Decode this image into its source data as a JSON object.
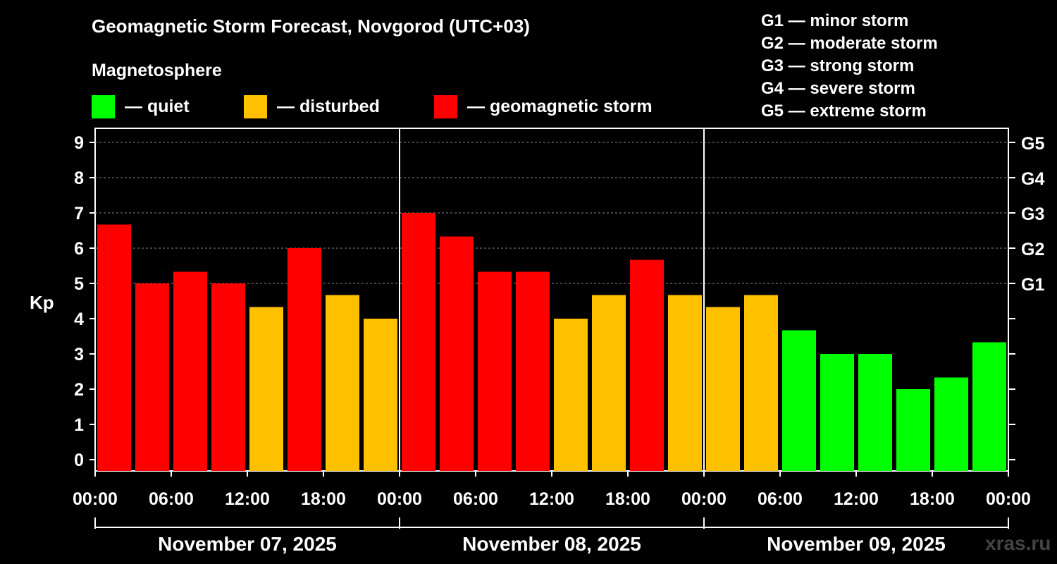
{
  "chart_data": {
    "type": "bar",
    "title": "Geomagnetic Storm Forecast, Novgorod (UTC+03)",
    "subtitle": "Magnetosphere",
    "ylabel": "Kp",
    "ylim": [
      0,
      9
    ],
    "yticks": [
      "0",
      "1",
      "2",
      "3",
      "4",
      "5",
      "6",
      "7",
      "8",
      "9"
    ],
    "right_ticks": [
      {
        "kp": 5,
        "label": "G1"
      },
      {
        "kp": 6,
        "label": "G2"
      },
      {
        "kp": 7,
        "label": "G3"
      },
      {
        "kp": 8,
        "label": "G4"
      },
      {
        "kp": 9,
        "label": "G5"
      }
    ],
    "x_tick_labels": [
      "00:00",
      "06:00",
      "12:00",
      "18:00",
      "00:00",
      "06:00",
      "12:00",
      "18:00",
      "00:00",
      "06:00",
      "12:00",
      "18:00",
      "00:00"
    ],
    "days": [
      "November 07, 2025",
      "November 08, 2025",
      "November 09, 2025"
    ],
    "values": [
      6.67,
      5.0,
      5.33,
      5.0,
      4.33,
      6.0,
      4.67,
      4.0,
      7.0,
      6.33,
      5.33,
      5.33,
      4.0,
      4.67,
      5.67,
      4.67,
      4.33,
      4.67,
      3.67,
      3.0,
      3.0,
      2.0,
      2.33,
      3.33
    ],
    "colors": {
      "quiet": "#00ff00",
      "disturbed": "#ffc000",
      "storm": "#ff0000"
    },
    "legend": [
      {
        "label": "— quiet",
        "color": "#00ff00"
      },
      {
        "label": "— disturbed",
        "color": "#ffc000"
      },
      {
        "label": "— geomagnetic storm",
        "color": "#ff0000"
      }
    ],
    "g_scale": [
      "G1 — minor storm",
      "G2 — moderate storm",
      "G3 — strong storm",
      "G4 — severe storm",
      "G5 — extreme storm"
    ]
  },
  "watermark": "xras.ru"
}
